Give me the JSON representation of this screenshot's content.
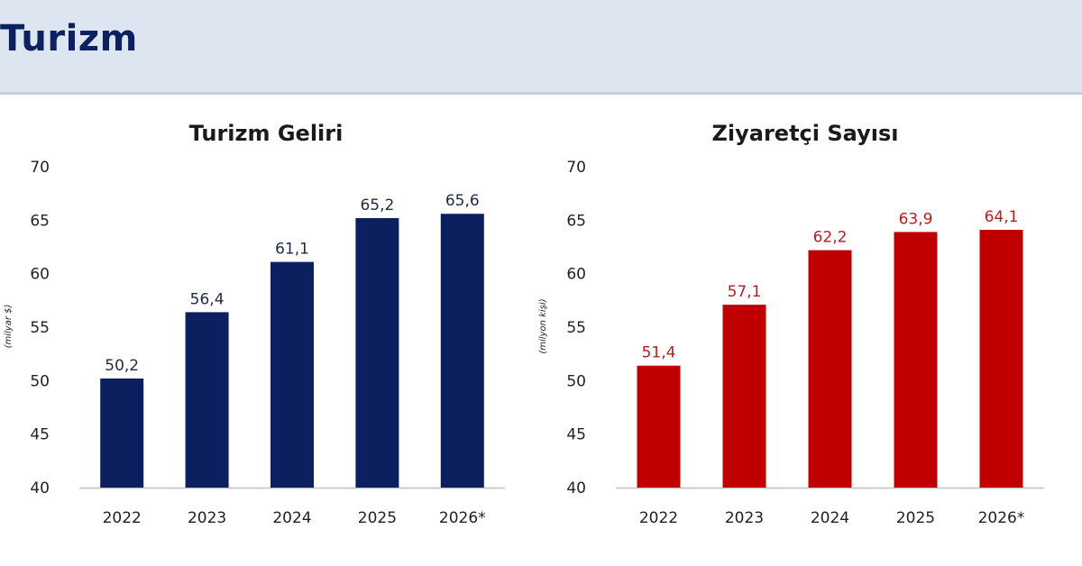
{
  "page": {
    "title": "Turizm"
  },
  "chart_data": [
    {
      "type": "bar",
      "title": "Turizm Geliri",
      "ylabel": "(milyar $)",
      "categories": [
        "2022",
        "2023",
        "2024",
        "2025",
        "2026*"
      ],
      "values": [
        50.2,
        56.4,
        61.1,
        65.2,
        65.6
      ],
      "value_labels": [
        "50,2",
        "56,4",
        "61,1",
        "65,2",
        "65,6"
      ],
      "yticks": [
        "40",
        "45",
        "50",
        "55",
        "60",
        "65",
        "70"
      ],
      "ylim": [
        40,
        70
      ],
      "grid": false,
      "color": "#0c2060",
      "label_color": "#1f2a44"
    },
    {
      "type": "bar",
      "title": "Ziyaretçi Sayısı",
      "ylabel": "(milyon kişi)",
      "categories": [
        "2022",
        "2023",
        "2024",
        "2025",
        "2026*"
      ],
      "values": [
        51.4,
        57.1,
        62.2,
        63.9,
        64.1
      ],
      "value_labels": [
        "51,4",
        "57,1",
        "62,2",
        "63,9",
        "64,1"
      ],
      "yticks": [
        "40",
        "45",
        "50",
        "55",
        "60",
        "65",
        "70"
      ],
      "ylim": [
        40,
        70
      ],
      "grid": false,
      "color": "#c00000",
      "label_color": "#b42020"
    }
  ]
}
